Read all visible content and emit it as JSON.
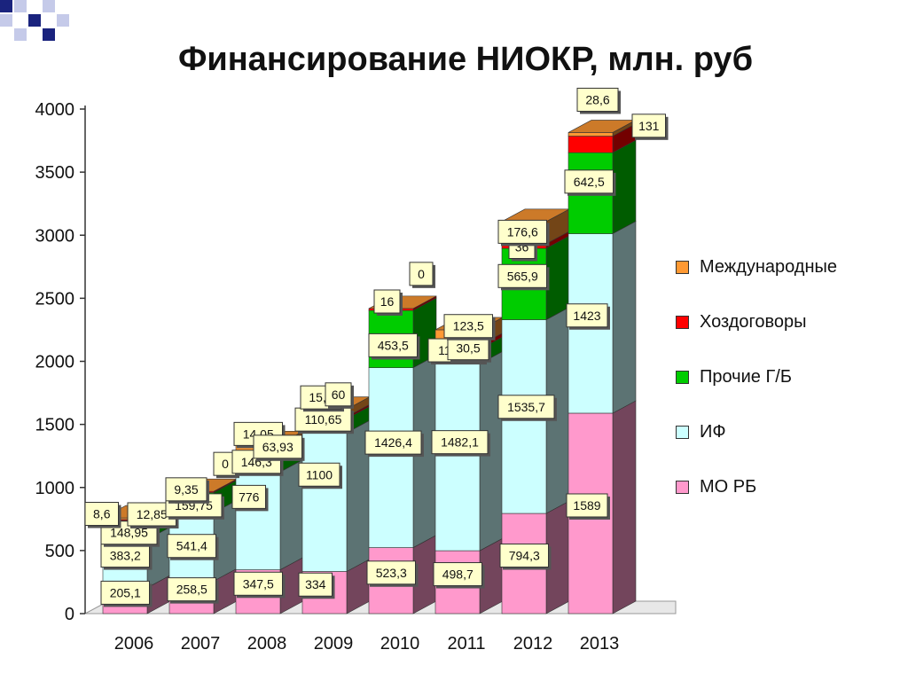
{
  "slide": {
    "title": "Финансирование НИОКР, млн. руб"
  },
  "colors": {
    "MO_RB": "#ff99cc",
    "IF": "#ccffff",
    "Prochie": "#00cc00",
    "Khozdog": "#ff0000",
    "Mezhdunar": "#ff9933",
    "deco_blue": "#1a237e",
    "deco_light": "#c5cae9"
  },
  "chart_data": {
    "type": "bar",
    "stacked": true,
    "title": "Финансирование НИОКР, млн. руб",
    "xlabel": "",
    "ylabel": "",
    "ylim": [
      0,
      4000
    ],
    "yticks": [
      0,
      500,
      1000,
      1500,
      2000,
      2500,
      3000,
      3500,
      4000
    ],
    "grid": false,
    "legend_position": "right",
    "categories": [
      "2006",
      "2007",
      "2008",
      "2009",
      "2010",
      "2011",
      "2012",
      "2013"
    ],
    "series": [
      {
        "name": "МО РБ",
        "color_key": "MO_RB",
        "values": [
          205.1,
          258.5,
          347.5,
          334,
          523.3,
          498.7,
          794.3,
          1589
        ],
        "labels": [
          "205,1",
          "258,5",
          "347,5",
          "334",
          "523,3",
          "498,7",
          "794,3",
          "1589"
        ]
      },
      {
        "name": "ИФ",
        "color_key": "IF",
        "values": [
          383.2,
          541.4,
          776,
          1100,
          1426.4,
          1482.1,
          1535.7,
          1423
        ],
        "labels": [
          "383,2",
          "541,4",
          "776",
          "1100",
          "1426,4",
          "1482,1",
          "1535,7",
          "1423"
        ]
      },
      {
        "name": "Прочие Г/Б",
        "color_key": "Prochie",
        "values": [
          148.95,
          159.75,
          146.3,
          110.65,
          453.5,
          115.11,
          565.9,
          642.5
        ],
        "labels": [
          "148,95",
          "159,75",
          "146,3",
          "110,65",
          "453,5",
          "115,11",
          "565,9",
          "642,5"
        ]
      },
      {
        "name": "Хоздоговоры",
        "color_key": "Khozdog",
        "values": [
          8.6,
          9.35,
          14.05,
          15.6,
          16,
          30.5,
          36,
          131
        ],
        "labels": [
          "8,6",
          "9,35",
          "14,05",
          "15,6",
          "16",
          "30,5",
          "36",
          "131"
        ]
      },
      {
        "name": "Международные",
        "color_key": "Mezhdunar",
        "values": [
          12.85,
          0,
          63.93,
          60,
          0,
          123.5,
          176.6,
          28.6
        ],
        "labels": [
          "12,85",
          "0",
          "63,93",
          "60",
          "0",
          "123,5",
          "176,6",
          "28,6"
        ]
      }
    ],
    "legend_order": [
      "Международные",
      "Хоздоговоры",
      "Прочие Г/Б",
      "ИФ",
      "МО РБ"
    ]
  }
}
